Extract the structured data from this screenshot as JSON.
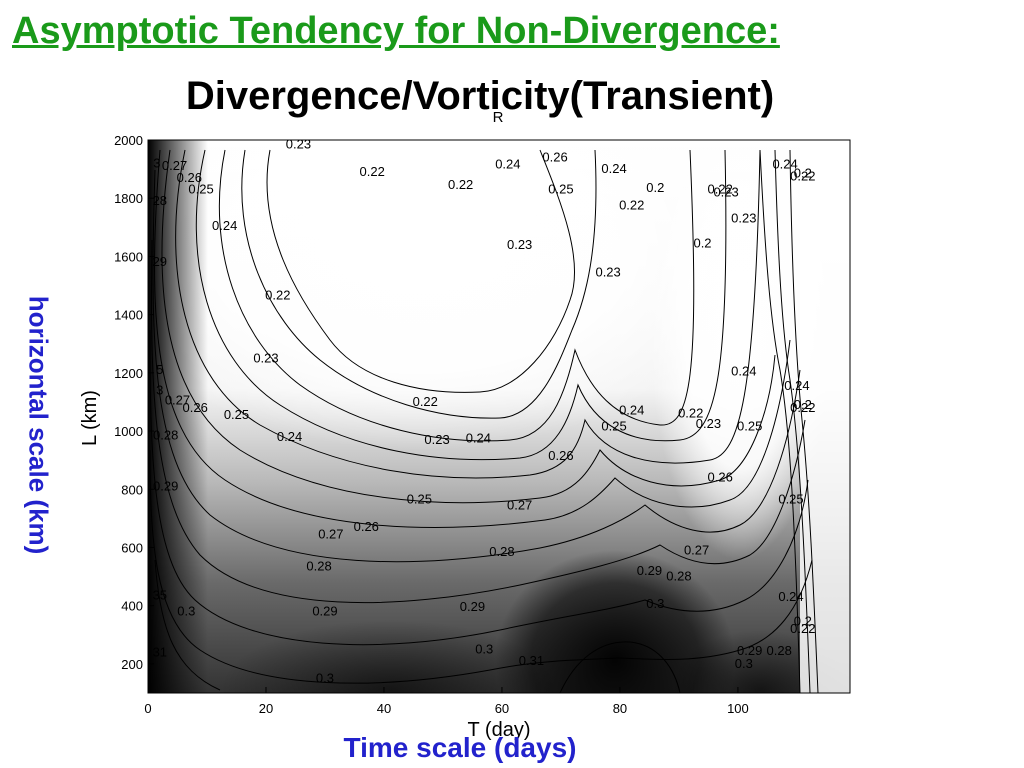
{
  "slide": {
    "title": "Asymptotic Tendency for Non-Divergence:",
    "side_label": "horizontal scale (km)",
    "bottom_label": "Time scale (days)"
  },
  "colors": {
    "slide_title": "#1a9a1a",
    "annotation": "#2222cc"
  },
  "chart_data": {
    "type": "heatmap",
    "title": "Divergence/Vorticity(Transient)",
    "title_annotation": "R",
    "xlabel": "T (day)",
    "ylabel": "L (km)",
    "xlim": [
      0,
      119
    ],
    "ylim": [
      100,
      2000
    ],
    "xticks": [
      0,
      20,
      40,
      60,
      80,
      100
    ],
    "yticks": [
      200,
      400,
      600,
      800,
      1000,
      1200,
      1400,
      1600,
      1800,
      2000
    ],
    "colormap": "grayscale (dark = high ratio, white = low ratio)",
    "grid": false,
    "contour_labels": [
      {
        "x": 25.5,
        "y": 1985,
        "v": "0.23"
      },
      {
        "x": 38,
        "y": 1890,
        "v": "0.22"
      },
      {
        "x": 53,
        "y": 1845,
        "v": "0.22"
      },
      {
        "x": 61,
        "y": 1915,
        "v": "0.24"
      },
      {
        "x": 69,
        "y": 1940,
        "v": "0.26"
      },
      {
        "x": 70,
        "y": 1830,
        "v": "0.25"
      },
      {
        "x": 79,
        "y": 1900,
        "v": "0.24"
      },
      {
        "x": 86,
        "y": 1835,
        "v": "0.2"
      },
      {
        "x": 82,
        "y": 1775,
        "v": "0.22"
      },
      {
        "x": 97,
        "y": 1830,
        "v": "0.22"
      },
      {
        "x": 98,
        "y": 1820,
        "v": "0.23"
      },
      {
        "x": 101,
        "y": 1730,
        "v": "0.23"
      },
      {
        "x": 94,
        "y": 1645,
        "v": "0.2"
      },
      {
        "x": 108,
        "y": 1915,
        "v": "0.24"
      },
      {
        "x": 111,
        "y": 1885,
        "v": "0.2"
      },
      {
        "x": 111,
        "y": 1875,
        "v": "0.22"
      },
      {
        "x": 1.5,
        "y": 1920,
        "v": "3"
      },
      {
        "x": 4.5,
        "y": 1910,
        "v": "0.27"
      },
      {
        "x": 7,
        "y": 1870,
        "v": "0.26"
      },
      {
        "x": 9,
        "y": 1830,
        "v": "0.25"
      },
      {
        "x": 13,
        "y": 1705,
        "v": "0.24"
      },
      {
        "x": 2,
        "y": 1790,
        "v": "28"
      },
      {
        "x": 2,
        "y": 1580,
        "v": "29"
      },
      {
        "x": 22,
        "y": 1465,
        "v": "0.22"
      },
      {
        "x": 63,
        "y": 1640,
        "v": "0.23"
      },
      {
        "x": 78,
        "y": 1545,
        "v": "0.23"
      },
      {
        "x": 20,
        "y": 1250,
        "v": "0.23"
      },
      {
        "x": 101,
        "y": 1205,
        "v": "0.24"
      },
      {
        "x": 110,
        "y": 1155,
        "v": "0.24"
      },
      {
        "x": 111,
        "y": 1090,
        "v": "0.2"
      },
      {
        "x": 111,
        "y": 1080,
        "v": "0.22"
      },
      {
        "x": 2,
        "y": 1210,
        "v": "5"
      },
      {
        "x": 2,
        "y": 1140,
        "v": "3"
      },
      {
        "x": 5,
        "y": 1105,
        "v": "0.27"
      },
      {
        "x": 8,
        "y": 1080,
        "v": "0.26"
      },
      {
        "x": 15,
        "y": 1055,
        "v": "0.25"
      },
      {
        "x": 47,
        "y": 1100,
        "v": "0.22"
      },
      {
        "x": 82,
        "y": 1070,
        "v": "0.24"
      },
      {
        "x": 92,
        "y": 1060,
        "v": "0.22"
      },
      {
        "x": 95,
        "y": 1025,
        "v": "0.23"
      },
      {
        "x": 102,
        "y": 1015,
        "v": "0.25"
      },
      {
        "x": 79,
        "y": 1015,
        "v": "0.25"
      },
      {
        "x": 24,
        "y": 980,
        "v": "0.24"
      },
      {
        "x": 49,
        "y": 970,
        "v": "0.23"
      },
      {
        "x": 56,
        "y": 975,
        "v": "0.24"
      },
      {
        "x": 3,
        "y": 985,
        "v": "0.28"
      },
      {
        "x": 70,
        "y": 915,
        "v": "0.26"
      },
      {
        "x": 97,
        "y": 840,
        "v": "0.26"
      },
      {
        "x": 3,
        "y": 810,
        "v": "0.29"
      },
      {
        "x": 46,
        "y": 765,
        "v": "0.25"
      },
      {
        "x": 63,
        "y": 745,
        "v": "0.27"
      },
      {
        "x": 109,
        "y": 765,
        "v": "0.25"
      },
      {
        "x": 37,
        "y": 670,
        "v": "0.26"
      },
      {
        "x": 31,
        "y": 645,
        "v": "0.27"
      },
      {
        "x": 60,
        "y": 585,
        "v": "0.28"
      },
      {
        "x": 93,
        "y": 590,
        "v": "0.27"
      },
      {
        "x": 29,
        "y": 535,
        "v": "0.28"
      },
      {
        "x": 85,
        "y": 520,
        "v": "0.29"
      },
      {
        "x": 90,
        "y": 500,
        "v": "0.28"
      },
      {
        "x": 109,
        "y": 430,
        "v": "0.24"
      },
      {
        "x": 2,
        "y": 435,
        "v": "35"
      },
      {
        "x": 6.5,
        "y": 380,
        "v": "0.3"
      },
      {
        "x": 30,
        "y": 380,
        "v": "0.29"
      },
      {
        "x": 55,
        "y": 395,
        "v": "0.29"
      },
      {
        "x": 86,
        "y": 405,
        "v": "0.3"
      },
      {
        "x": 111,
        "y": 345,
        "v": "0.2"
      },
      {
        "x": 111,
        "y": 320,
        "v": "0.22"
      },
      {
        "x": 2,
        "y": 240,
        "v": "31"
      },
      {
        "x": 57,
        "y": 250,
        "v": "0.3"
      },
      {
        "x": 65,
        "y": 210,
        "v": "0.31"
      },
      {
        "x": 102,
        "y": 245,
        "v": "0.29"
      },
      {
        "x": 107,
        "y": 245,
        "v": "0.28"
      },
      {
        "x": 101,
        "y": 200,
        "v": "0.3"
      },
      {
        "x": 30,
        "y": 150,
        "v": "0.3"
      }
    ]
  }
}
